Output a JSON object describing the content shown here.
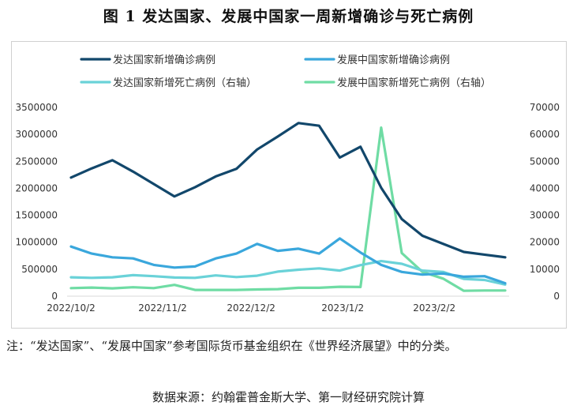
{
  "title": "图 1  发达国家、发展中国家一周新增确诊与死亡病例",
  "note": "注：“发达国家”、“发展中国家”参考国际货币基金组织在《世界经济展望》中的分类。",
  "source": "数据来源：约翰霍普金斯大学、第一财经研究院计算",
  "chart_data": {
    "type": "line",
    "x_ticks": [
      "2022/10/2",
      "2022/11/2",
      "2022/12/2",
      "2023/1/2",
      "2023/2/2"
    ],
    "x_tick_index": [
      0,
      4.43,
      8.71,
      13.14,
      17.57
    ],
    "y_left": {
      "min": 0,
      "max": 3500000,
      "ticks": [
        "0",
        "500000",
        "1000000",
        "1500000",
        "2000000",
        "2500000",
        "3000000",
        "3500000"
      ]
    },
    "y_right": {
      "min": 0,
      "max": 70000,
      "ticks": [
        "0",
        "10000",
        "20000",
        "30000",
        "40000",
        "50000",
        "60000",
        "70000"
      ]
    },
    "grid": false,
    "legend_position": "top",
    "series": [
      {
        "name": "发达国家新增确诊病例",
        "axis": "left",
        "color": "#12476b",
        "values": [
          2200000,
          2370000,
          2520000,
          2310000,
          2080000,
          1850000,
          2020000,
          2220000,
          2360000,
          2720000,
          2960000,
          3210000,
          3160000,
          2570000,
          2770000,
          2010000,
          1430000,
          1120000,
          970000,
          820000,
          770000,
          720000
        ]
      },
      {
        "name": "发展中国家新增确诊病例",
        "axis": "left",
        "color": "#3aa7dc",
        "values": [
          920000,
          790000,
          720000,
          700000,
          580000,
          530000,
          550000,
          700000,
          790000,
          970000,
          840000,
          880000,
          790000,
          1070000,
          810000,
          580000,
          450000,
          400000,
          420000,
          360000,
          370000,
          240000
        ]
      },
      {
        "name": "发达国家新增死亡病例（右轴）",
        "axis": "right",
        "color": "#6ad2d8",
        "values": [
          7000,
          6800,
          7000,
          7800,
          7400,
          6900,
          6800,
          7700,
          7100,
          7600,
          9100,
          9800,
          10300,
          9500,
          11500,
          13000,
          12000,
          9500,
          9000,
          6400,
          6000,
          4300
        ]
      },
      {
        "name": "发展中国家新增死亡病例（右轴）",
        "axis": "right",
        "color": "#6fdca4",
        "values": [
          3000,
          3200,
          2900,
          3300,
          3000,
          4200,
          2300,
          2300,
          2300,
          2500,
          2600,
          3100,
          3100,
          3500,
          3400,
          62500,
          16000,
          9000,
          6500,
          2000,
          2100,
          2100
        ]
      }
    ]
  }
}
